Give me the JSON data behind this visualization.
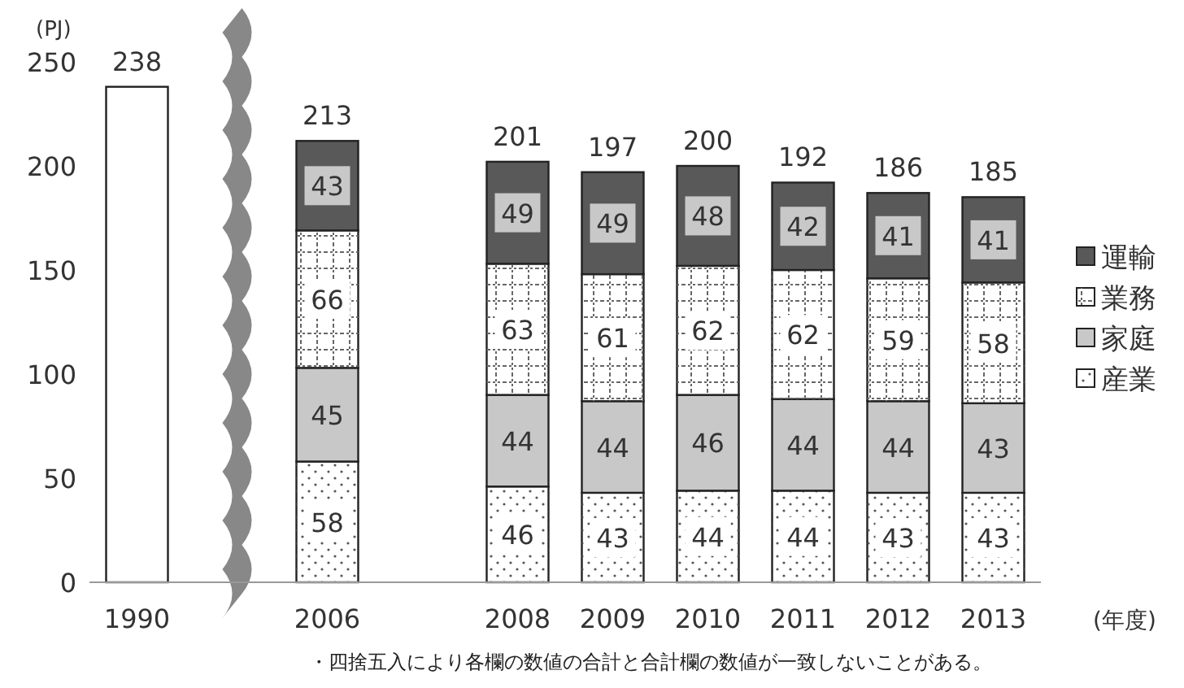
{
  "chart_data": {
    "type": "bar",
    "stacked": true,
    "ylabel": "(PJ)",
    "xlabel": "(年度)",
    "categories": [
      "1990",
      null,
      "2006",
      null,
      "2008",
      "2009",
      "2010",
      "2011",
      "2012",
      "2013"
    ],
    "ylim": [
      0,
      250
    ],
    "yticks": [
      0,
      50,
      100,
      150,
      200,
      250
    ],
    "legend": "right",
    "grid": false,
    "series": [
      {
        "color": "#ffffff",
        "values": [
          238,
          null,
          null,
          null,
          null,
          null,
          null,
          null,
          null,
          null
        ]
      },
      {
        "name": "産業",
        "color": "#ffffff",
        "values": [
          null,
          null,
          58,
          null,
          46,
          43,
          44,
          44,
          43,
          43
        ],
        "value_labels": [
          null,
          null,
          "58",
          null,
          "46",
          "43",
          "44",
          "44",
          "43",
          "43"
        ]
      },
      {
        "name": "家庭",
        "color": "#c8c8c8",
        "values": [
          null,
          null,
          45,
          null,
          44,
          44,
          46,
          44,
          44,
          43
        ],
        "value_labels": [
          null,
          null,
          "45",
          null,
          "44",
          "44",
          "46",
          "44",
          "44",
          "43"
        ]
      },
      {
        "name": "業務",
        "color": "#ffffff",
        "values": [
          null,
          null,
          66,
          null,
          63,
          61,
          62,
          62,
          59,
          58
        ],
        "value_labels": [
          null,
          null,
          "66",
          null,
          "63",
          "61",
          "62",
          "62",
          "59",
          "58"
        ]
      },
      {
        "name": "運輸",
        "color": "#595959",
        "values": [
          null,
          null,
          43,
          null,
          49,
          49,
          48,
          42,
          41,
          41
        ],
        "value_labels": [
          null,
          null,
          "43",
          null,
          "49",
          "49",
          "48",
          "42",
          "41",
          "41"
        ]
      }
    ],
    "totals": [
      "238",
      null,
      "213",
      null,
      "201",
      "197",
      "200",
      "192",
      "186",
      "185"
    ],
    "annotations": [
      "・四捨五入により各欄の数値の合計と合計欄の数値が一致しないことがある。"
    ]
  }
}
